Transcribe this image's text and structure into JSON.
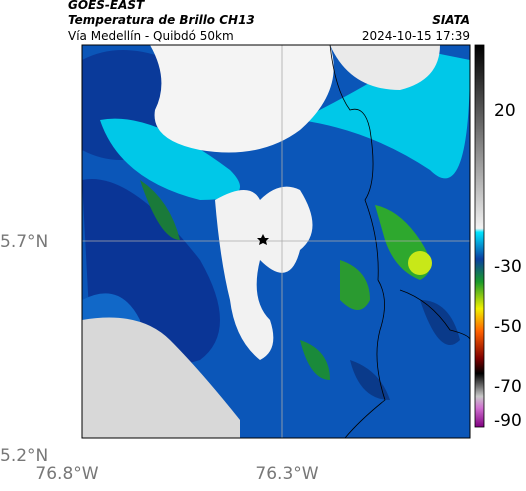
{
  "header": {
    "title": "GOES-EAST",
    "subtitle": "Temperatura de Brillo CH13",
    "location": "Vía Medellín - Quibdó 50km",
    "brand": "SIATA",
    "datetime": "2024-10-15 17:39"
  },
  "map": {
    "lat_labels": [
      "5.7°N",
      "5.2°N"
    ],
    "lon_labels": [
      "76.8°W",
      "76.3°W"
    ]
  },
  "colorbar": {
    "labels": [
      "20",
      "-30",
      "-50",
      "-70",
      "-90"
    ]
  }
}
